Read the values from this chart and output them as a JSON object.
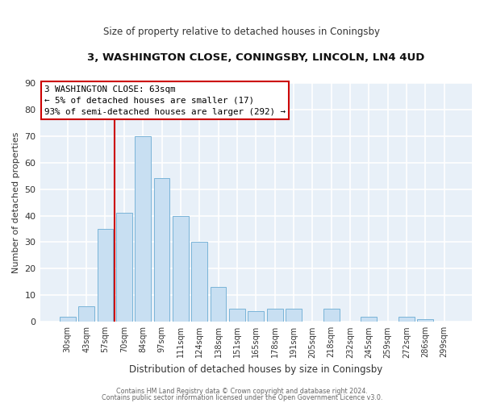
{
  "title": "3, WASHINGTON CLOSE, CONINGSBY, LINCOLN, LN4 4UD",
  "subtitle": "Size of property relative to detached houses in Coningsby",
  "xlabel": "Distribution of detached houses by size in Coningsby",
  "ylabel": "Number of detached properties",
  "bar_labels": [
    "30sqm",
    "43sqm",
    "57sqm",
    "70sqm",
    "84sqm",
    "97sqm",
    "111sqm",
    "124sqm",
    "138sqm",
    "151sqm",
    "165sqm",
    "178sqm",
    "191sqm",
    "205sqm",
    "218sqm",
    "232sqm",
    "245sqm",
    "259sqm",
    "272sqm",
    "286sqm",
    "299sqm"
  ],
  "bar_values": [
    2,
    6,
    35,
    41,
    70,
    54,
    40,
    30,
    13,
    5,
    4,
    5,
    5,
    0,
    5,
    0,
    2,
    0,
    2,
    1,
    0
  ],
  "bar_color": "#c8dff2",
  "bar_edge_color": "#7ab4d8",
  "vline_color": "#cc0000",
  "annotation_title": "3 WASHINGTON CLOSE: 63sqm",
  "annotation_line1": "← 5% of detached houses are smaller (17)",
  "annotation_line2": "93% of semi-detached houses are larger (292) →",
  "annotation_box_facecolor": "#ffffff",
  "annotation_box_edgecolor": "#cc0000",
  "ylim": [
    0,
    90
  ],
  "yticks": [
    0,
    10,
    20,
    30,
    40,
    50,
    60,
    70,
    80,
    90
  ],
  "bg_color": "#ffffff",
  "plot_bg_color": "#e8f0f8",
  "grid_color": "#ffffff",
  "footer1": "Contains HM Land Registry data © Crown copyright and database right 2024.",
  "footer2": "Contains public sector information licensed under the Open Government Licence v3.0."
}
